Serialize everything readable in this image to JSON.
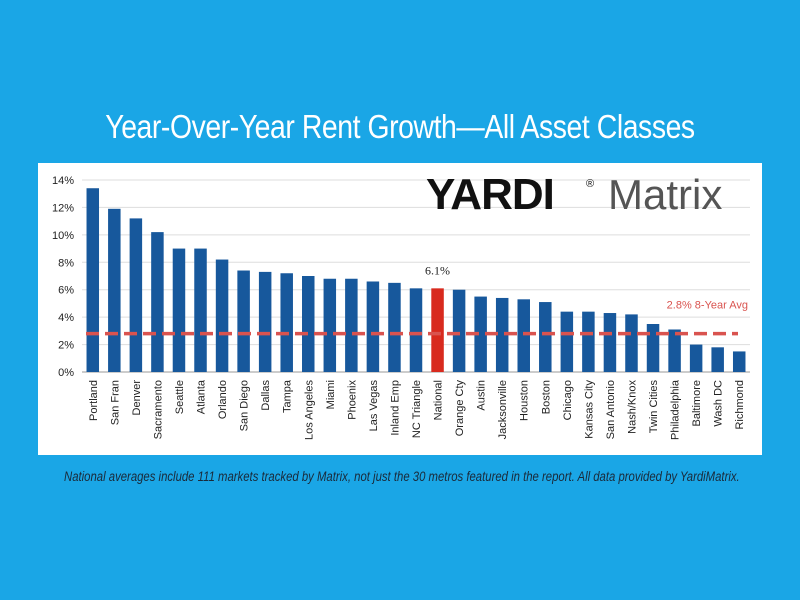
{
  "chart_data": {
    "type": "bar",
    "title": "Year-Over-Year Rent Growth—All Asset Classes",
    "categories": [
      "Portland",
      "San Fran",
      "Denver",
      "Sacramento",
      "Seattle",
      "Atlanta",
      "Orlando",
      "San Diego",
      "Dallas",
      "Tampa",
      "Los Angeles",
      "Miami",
      "Phoenix",
      "Las Vegas",
      "Inland Emp",
      "NC Triangle",
      "National",
      "Orange Cty",
      "Austin",
      "Jacksonville",
      "Houston",
      "Boston",
      "Chicago",
      "Kansas City",
      "San Antonio",
      "Nash/Knox",
      "Twin Cities",
      "Philadelphia",
      "Baltimore",
      "Wash DC",
      "Richmond"
    ],
    "values": [
      13.4,
      11.9,
      11.2,
      10.2,
      9.0,
      9.0,
      8.2,
      7.4,
      7.3,
      7.2,
      7.0,
      6.8,
      6.8,
      6.6,
      6.5,
      6.1,
      6.1,
      6.0,
      5.5,
      5.4,
      5.3,
      5.1,
      4.4,
      4.4,
      4.3,
      4.2,
      3.5,
      3.1,
      2.0,
      1.8,
      1.5
    ],
    "highlight_category": "National",
    "highlight_label": "6.1%",
    "ylim": [
      0,
      14
    ],
    "yticks": [
      0,
      2,
      4,
      6,
      8,
      10,
      12,
      14
    ],
    "ytick_format": "%",
    "grid": true,
    "reference_line": {
      "value": 2.8,
      "label": "2.8% 8-Year Avg",
      "style": "dashed"
    },
    "colors": {
      "bar": "#17589c",
      "highlight": "#d82a1e",
      "reference": "#d9534f",
      "grid": "#dddddd"
    }
  },
  "logo": {
    "brand": "YARDI",
    "registered": "®",
    "product": "Matrix"
  },
  "footnote": "National averages include 111 markets tracked by Matrix, not just the 30 metros featured in the report. All data provided by YardiMatrix."
}
